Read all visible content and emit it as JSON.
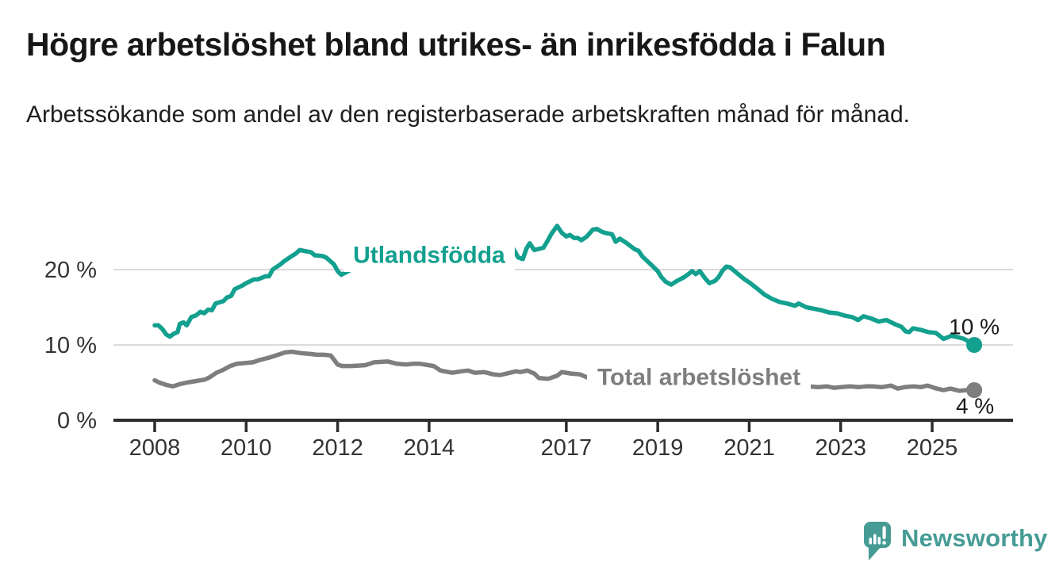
{
  "header": {
    "title": "Högre arbetslöshet bland utrikes- än inrikesfödda i Falun",
    "subtitle": "Arbetssökande som andel av den registerbaserade arbetskraften månad för månad."
  },
  "footer": {
    "brand": "Newsworthy",
    "brand_color": "#469c95",
    "logo_icon": "speech-bubble-bar-chart-icon"
  },
  "chart_data": {
    "type": "line",
    "title": "Högre arbetslöshet bland utrikes- än inrikesfödda i Falun",
    "subtitle": "Arbetssökande som andel av den registerbaserade arbetskraften månad för månad.",
    "unit": "%",
    "grid": "horizontal-only",
    "legend": "inline-labels-on-lines",
    "x_axis": {
      "min": 2008,
      "max": 2025.92,
      "ticks": [
        {
          "value": 2008,
          "label": "2008"
        },
        {
          "value": 2010,
          "label": "2010"
        },
        {
          "value": 2012,
          "label": "2012"
        },
        {
          "value": 2014,
          "label": "2014"
        },
        {
          "value": 2017,
          "label": "2017"
        },
        {
          "value": 2019,
          "label": "2019"
        },
        {
          "value": 2021,
          "label": "2021"
        },
        {
          "value": 2023,
          "label": "2023"
        },
        {
          "value": 2025,
          "label": "2025"
        }
      ]
    },
    "y_axis": {
      "min": 0,
      "max": 27,
      "ticks": [
        {
          "value": 0,
          "label": "0 %"
        },
        {
          "value": 10,
          "label": "10 %"
        },
        {
          "value": 20,
          "label": "20 %"
        }
      ],
      "grid_values": [
        10,
        20
      ]
    },
    "colors": {
      "utlandsfodda": "#13a08f",
      "total": "#7e7e7e",
      "grid": "#dadada",
      "axis": "#2d2d2d",
      "tick_text": "#333333",
      "end_label_text": "#191919"
    },
    "series": [
      {
        "name": "Utlandsfödda",
        "color_key": "utlandsfodda",
        "end_value_label": "10 %",
        "points": [
          [
            2008.0,
            12.6
          ],
          [
            2008.08,
            12.6
          ],
          [
            2008.17,
            12.1
          ],
          [
            2008.25,
            11.4
          ],
          [
            2008.33,
            11.1
          ],
          [
            2008.42,
            11.5
          ],
          [
            2008.5,
            11.7
          ],
          [
            2008.55,
            12.8
          ],
          [
            2008.63,
            13.0
          ],
          [
            2008.7,
            12.6
          ],
          [
            2008.8,
            13.7
          ],
          [
            2008.9,
            13.9
          ],
          [
            2009.0,
            14.4
          ],
          [
            2009.08,
            14.2
          ],
          [
            2009.17,
            14.7
          ],
          [
            2009.25,
            14.6
          ],
          [
            2009.33,
            15.5
          ],
          [
            2009.5,
            15.8
          ],
          [
            2009.58,
            16.3
          ],
          [
            2009.67,
            16.5
          ],
          [
            2009.75,
            17.4
          ],
          [
            2009.92,
            17.9
          ],
          [
            2010.0,
            18.2
          ],
          [
            2010.17,
            18.7
          ],
          [
            2010.25,
            18.7
          ],
          [
            2010.42,
            19.1
          ],
          [
            2010.5,
            19.1
          ],
          [
            2010.58,
            20.0
          ],
          [
            2010.75,
            20.7
          ],
          [
            2010.83,
            21.1
          ],
          [
            2011.0,
            21.8
          ],
          [
            2011.08,
            22.1
          ],
          [
            2011.17,
            22.6
          ],
          [
            2011.33,
            22.4
          ],
          [
            2011.42,
            22.3
          ],
          [
            2011.5,
            21.9
          ],
          [
            2011.67,
            21.8
          ],
          [
            2011.75,
            21.6
          ],
          [
            2011.92,
            20.7
          ],
          [
            2012.0,
            19.8
          ],
          [
            2012.08,
            19.3
          ],
          [
            2012.17,
            19.6
          ],
          [
            2012.33,
            20.1
          ],
          [
            2012.5,
            20.4
          ],
          [
            2012.75,
            20.2
          ],
          [
            2013.0,
            20.7
          ],
          [
            2013.25,
            20.9
          ],
          [
            2013.5,
            20.6
          ],
          [
            2013.75,
            20.9
          ],
          [
            2014.0,
            21.1
          ],
          [
            2014.25,
            21.0
          ],
          [
            2014.5,
            21.3
          ],
          [
            2014.75,
            21.2
          ],
          [
            2015.0,
            21.5
          ],
          [
            2015.25,
            21.4
          ],
          [
            2015.5,
            21.8
          ],
          [
            2015.67,
            22.4
          ],
          [
            2015.83,
            22.9
          ],
          [
            2015.95,
            21.6
          ],
          [
            2016.05,
            21.4
          ],
          [
            2016.13,
            22.8
          ],
          [
            2016.2,
            23.5
          ],
          [
            2016.3,
            22.6
          ],
          [
            2016.5,
            22.9
          ],
          [
            2016.58,
            23.7
          ],
          [
            2016.67,
            24.7
          ],
          [
            2016.8,
            25.8
          ],
          [
            2016.9,
            24.9
          ],
          [
            2017.0,
            24.4
          ],
          [
            2017.08,
            24.6
          ],
          [
            2017.17,
            24.2
          ],
          [
            2017.25,
            24.2
          ],
          [
            2017.33,
            23.9
          ],
          [
            2017.45,
            24.4
          ],
          [
            2017.58,
            25.3
          ],
          [
            2017.67,
            25.4
          ],
          [
            2017.75,
            25.1
          ],
          [
            2017.83,
            24.9
          ],
          [
            2018.0,
            24.7
          ],
          [
            2018.08,
            23.7
          ],
          [
            2018.17,
            24.1
          ],
          [
            2018.3,
            23.6
          ],
          [
            2018.5,
            22.7
          ],
          [
            2018.58,
            22.5
          ],
          [
            2018.67,
            21.7
          ],
          [
            2018.83,
            20.8
          ],
          [
            2019.0,
            19.8
          ],
          [
            2019.08,
            19.0
          ],
          [
            2019.17,
            18.4
          ],
          [
            2019.29,
            18.0
          ],
          [
            2019.42,
            18.5
          ],
          [
            2019.58,
            19.0
          ],
          [
            2019.67,
            19.4
          ],
          [
            2019.75,
            19.8
          ],
          [
            2019.83,
            19.4
          ],
          [
            2019.92,
            19.8
          ],
          [
            2020.04,
            18.8
          ],
          [
            2020.13,
            18.2
          ],
          [
            2020.25,
            18.5
          ],
          [
            2020.33,
            19.0
          ],
          [
            2020.42,
            19.9
          ],
          [
            2020.5,
            20.4
          ],
          [
            2020.58,
            20.3
          ],
          [
            2020.7,
            19.7
          ],
          [
            2020.8,
            19.2
          ],
          [
            2020.9,
            18.7
          ],
          [
            2021.0,
            18.3
          ],
          [
            2021.17,
            17.5
          ],
          [
            2021.33,
            16.7
          ],
          [
            2021.5,
            16.1
          ],
          [
            2021.67,
            15.7
          ],
          [
            2021.83,
            15.5
          ],
          [
            2022.0,
            15.2
          ],
          [
            2022.08,
            15.5
          ],
          [
            2022.25,
            15.0
          ],
          [
            2022.42,
            14.8
          ],
          [
            2022.58,
            14.6
          ],
          [
            2022.75,
            14.3
          ],
          [
            2022.92,
            14.2
          ],
          [
            2023.08,
            13.9
          ],
          [
            2023.25,
            13.7
          ],
          [
            2023.38,
            13.3
          ],
          [
            2023.5,
            13.8
          ],
          [
            2023.67,
            13.5
          ],
          [
            2023.83,
            13.1
          ],
          [
            2024.0,
            13.3
          ],
          [
            2024.17,
            12.8
          ],
          [
            2024.33,
            12.4
          ],
          [
            2024.42,
            11.8
          ],
          [
            2024.5,
            11.7
          ],
          [
            2024.58,
            12.2
          ],
          [
            2024.75,
            12.0
          ],
          [
            2024.92,
            11.7
          ],
          [
            2025.08,
            11.6
          ],
          [
            2025.25,
            10.8
          ],
          [
            2025.42,
            11.2
          ],
          [
            2025.58,
            11.0
          ],
          [
            2025.7,
            10.8
          ],
          [
            2025.92,
            10.0
          ]
        ]
      },
      {
        "name": "Total arbetslöshet",
        "color_key": "total",
        "end_value_label": "4 %",
        "points": [
          [
            2008.0,
            5.3
          ],
          [
            2008.1,
            5.0
          ],
          [
            2008.25,
            4.7
          ],
          [
            2008.4,
            4.5
          ],
          [
            2008.55,
            4.8
          ],
          [
            2008.7,
            5.0
          ],
          [
            2008.9,
            5.2
          ],
          [
            2009.1,
            5.4
          ],
          [
            2009.2,
            5.7
          ],
          [
            2009.35,
            6.3
          ],
          [
            2009.5,
            6.7
          ],
          [
            2009.65,
            7.2
          ],
          [
            2009.8,
            7.5
          ],
          [
            2010.0,
            7.6
          ],
          [
            2010.15,
            7.7
          ],
          [
            2010.3,
            8.0
          ],
          [
            2010.5,
            8.3
          ],
          [
            2010.7,
            8.7
          ],
          [
            2010.85,
            9.0
          ],
          [
            2011.0,
            9.1
          ],
          [
            2011.2,
            8.9
          ],
          [
            2011.4,
            8.8
          ],
          [
            2011.55,
            8.7
          ],
          [
            2011.7,
            8.7
          ],
          [
            2011.85,
            8.6
          ],
          [
            2012.0,
            7.4
          ],
          [
            2012.1,
            7.2
          ],
          [
            2012.3,
            7.2
          ],
          [
            2012.6,
            7.3
          ],
          [
            2012.8,
            7.7
          ],
          [
            2013.1,
            7.8
          ],
          [
            2013.3,
            7.5
          ],
          [
            2013.5,
            7.4
          ],
          [
            2013.65,
            7.5
          ],
          [
            2013.8,
            7.5
          ],
          [
            2014.1,
            7.2
          ],
          [
            2014.25,
            6.6
          ],
          [
            2014.5,
            6.3
          ],
          [
            2014.7,
            6.5
          ],
          [
            2014.85,
            6.6
          ],
          [
            2015.0,
            6.3
          ],
          [
            2015.2,
            6.4
          ],
          [
            2015.4,
            6.1
          ],
          [
            2015.55,
            6.0
          ],
          [
            2015.7,
            6.2
          ],
          [
            2015.9,
            6.5
          ],
          [
            2016.0,
            6.4
          ],
          [
            2016.15,
            6.6
          ],
          [
            2016.3,
            6.2
          ],
          [
            2016.4,
            5.6
          ],
          [
            2016.6,
            5.5
          ],
          [
            2016.8,
            5.9
          ],
          [
            2016.9,
            6.4
          ],
          [
            2017.1,
            6.2
          ],
          [
            2017.3,
            6.1
          ],
          [
            2017.45,
            5.7
          ],
          [
            2017.6,
            5.6
          ],
          [
            2018.0,
            5.4
          ],
          [
            2018.5,
            5.3
          ],
          [
            2019.0,
            5.2
          ],
          [
            2019.5,
            5.3
          ],
          [
            2020.0,
            5.8
          ],
          [
            2020.4,
            6.8
          ],
          [
            2020.8,
            6.5
          ],
          [
            2021.3,
            6.0
          ],
          [
            2021.8,
            5.2
          ],
          [
            2022.0,
            4.8
          ],
          [
            2022.3,
            4.5
          ],
          [
            2022.5,
            4.4
          ],
          [
            2022.7,
            4.5
          ],
          [
            2022.85,
            4.3
          ],
          [
            2023.0,
            4.4
          ],
          [
            2023.2,
            4.5
          ],
          [
            2023.4,
            4.4
          ],
          [
            2023.55,
            4.5
          ],
          [
            2023.7,
            4.5
          ],
          [
            2023.9,
            4.4
          ],
          [
            2024.1,
            4.6
          ],
          [
            2024.25,
            4.2
          ],
          [
            2024.4,
            4.4
          ],
          [
            2024.6,
            4.5
          ],
          [
            2024.75,
            4.4
          ],
          [
            2024.9,
            4.6
          ],
          [
            2025.1,
            4.2
          ],
          [
            2025.25,
            4.0
          ],
          [
            2025.4,
            4.2
          ],
          [
            2025.6,
            3.9
          ],
          [
            2025.75,
            4.0
          ],
          [
            2025.92,
            4.0
          ]
        ]
      }
    ],
    "series_labels": [
      {
        "text": "Utlandsfödda",
        "color_key": "utlandsfodda",
        "x": 2014.0,
        "y": 21.9
      },
      {
        "text": "Total arbetslöshet",
        "color_key": "total",
        "x": 2019.9,
        "y": 5.7
      }
    ]
  }
}
